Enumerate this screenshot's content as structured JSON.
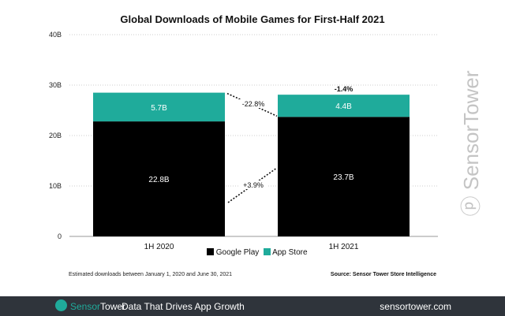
{
  "chart_data": {
    "type": "bar",
    "stacked": true,
    "title": "Global Downloads of Mobile Games for First-Half 2021",
    "categories": [
      "1H 2020",
      "1H 2021"
    ],
    "series": [
      {
        "name": "Google Play",
        "values": [
          22.8,
          23.7
        ],
        "labels": [
          "22.8B",
          "23.7B"
        ],
        "color": "#000000"
      },
      {
        "name": "App Store",
        "values": [
          5.7,
          4.4
        ],
        "labels": [
          "5.7B",
          "4.4B"
        ],
        "color": "#1fab9b"
      }
    ],
    "yticks": [
      "0",
      "10B",
      "20B",
      "30B",
      "40B"
    ],
    "ylim": [
      0,
      40
    ],
    "grid": true,
    "legend": "bottom",
    "annotations": {
      "app_store_change": "-22.8%",
      "google_play_change": "+3.9%",
      "total_change": "-1.4%"
    }
  },
  "notes": {
    "left": "Estimated downloads between January 1, 2020 and June 30, 2021",
    "source": "Source: Sensor Tower Store Intelligence"
  },
  "footer": {
    "brand_a": "Sensor",
    "brand_b": "Tower",
    "tagline": "Data That Drives App Growth",
    "url": "sensortower.com",
    "watermark": "SensorTower",
    "brand_color": "#1fab9b"
  }
}
